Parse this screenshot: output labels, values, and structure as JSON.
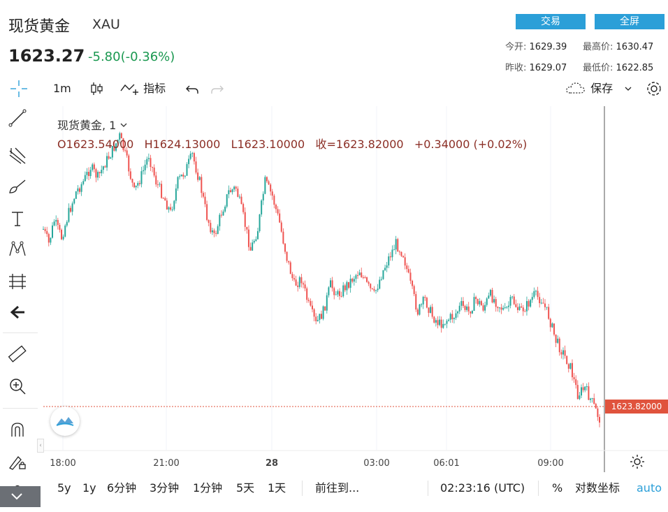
{
  "header": {
    "title": "现货黄金",
    "symbol": "XAU",
    "price": "1623.27",
    "change": "-5.80(-0.36%)",
    "trade_button": "交易",
    "fullscreen_button": "全屏",
    "open_label": "今开:",
    "open_value": "1629.39",
    "high_label": "最高价:",
    "high_value": "1630.47",
    "prevclose_label": "昨收:",
    "prevclose_value": "1629.07",
    "low_label": "最低价:",
    "low_value": "1622.85"
  },
  "toolbar": {
    "interval": "1m",
    "indicators": "指标",
    "save": "保存"
  },
  "legend": {
    "series": "现货黄金, 1",
    "open": "O1623.54000",
    "high": "H1624.13000",
    "low": "L1623.10000",
    "close": "收=1623.82000",
    "change": "+0.34000 (+0.02%)"
  },
  "price_tag": "1623.82000",
  "bottom": {
    "ranges": [
      "5y",
      "1y",
      "6分钟",
      "3分钟",
      "1分钟",
      "5天",
      "1天"
    ],
    "goto": "前往到...",
    "clock": "02:23:16 (UTC)",
    "percent": "%",
    "log": "对数坐标",
    "auto": "auto"
  },
  "colors": {
    "up": "#26a69a",
    "down": "#ef5350",
    "accent": "#2b9fd8",
    "price_tag": "#e0533d"
  },
  "chart_data": {
    "type": "candlestick",
    "symbol": "XAU",
    "interval": "1m",
    "x_ticks": [
      "18:00",
      "21:00",
      "28",
      "03:00",
      "06:01",
      "09:00"
    ],
    "last_close": 1623.82,
    "close_path": [
      [
        0,
        0.78
      ],
      [
        3,
        0.85
      ],
      [
        6,
        0.74
      ],
      [
        10,
        0.82
      ],
      [
        14,
        0.7
      ],
      [
        18,
        0.6
      ],
      [
        22,
        0.55
      ],
      [
        26,
        0.48
      ],
      [
        30,
        0.53
      ],
      [
        34,
        0.46
      ],
      [
        38,
        0.4
      ],
      [
        42,
        0.33
      ],
      [
        46,
        0.45
      ],
      [
        50,
        0.6
      ],
      [
        54,
        0.52
      ],
      [
        58,
        0.42
      ],
      [
        62,
        0.55
      ],
      [
        66,
        0.62
      ],
      [
        70,
        0.7
      ],
      [
        74,
        0.55
      ],
      [
        78,
        0.5
      ],
      [
        82,
        0.42
      ],
      [
        86,
        0.55
      ],
      [
        90,
        0.72
      ],
      [
        94,
        0.82
      ],
      [
        98,
        0.7
      ],
      [
        102,
        0.6
      ],
      [
        106,
        0.58
      ],
      [
        110,
        0.72
      ],
      [
        114,
        0.88
      ],
      [
        118,
        0.78
      ],
      [
        122,
        0.55
      ],
      [
        126,
        0.62
      ],
      [
        130,
        0.75
      ],
      [
        134,
        0.92
      ],
      [
        138,
        1.05
      ],
      [
        142,
        1.02
      ],
      [
        146,
        1.15
      ],
      [
        150,
        1.24
      ],
      [
        154,
        1.18
      ],
      [
        158,
        1.05
      ],
      [
        162,
        1.1
      ],
      [
        166,
        1.06
      ],
      [
        170,
        1.02
      ],
      [
        174,
        0.98
      ],
      [
        178,
        1.05
      ],
      [
        182,
        1.1
      ],
      [
        186,
        1.0
      ],
      [
        190,
        0.92
      ],
      [
        194,
        0.85
      ],
      [
        198,
        0.9
      ],
      [
        202,
        1.05
      ],
      [
        206,
        1.18
      ],
      [
        210,
        1.12
      ],
      [
        214,
        1.2
      ],
      [
        218,
        1.24
      ],
      [
        222,
        1.22
      ],
      [
        226,
        1.2
      ],
      [
        230,
        1.15
      ],
      [
        234,
        1.18
      ],
      [
        238,
        1.12
      ],
      [
        242,
        1.16
      ],
      [
        246,
        1.1
      ],
      [
        250,
        1.14
      ],
      [
        254,
        1.18
      ],
      [
        258,
        1.12
      ],
      [
        262,
        1.18
      ],
      [
        266,
        1.15
      ],
      [
        270,
        1.1
      ],
      [
        274,
        1.12
      ],
      [
        278,
        1.2
      ],
      [
        282,
        1.32
      ],
      [
        286,
        1.38
      ],
      [
        290,
        1.45
      ],
      [
        294,
        1.58
      ],
      [
        298,
        1.55
      ],
      [
        302,
        1.62
      ],
      [
        306,
        1.7
      ]
    ]
  }
}
